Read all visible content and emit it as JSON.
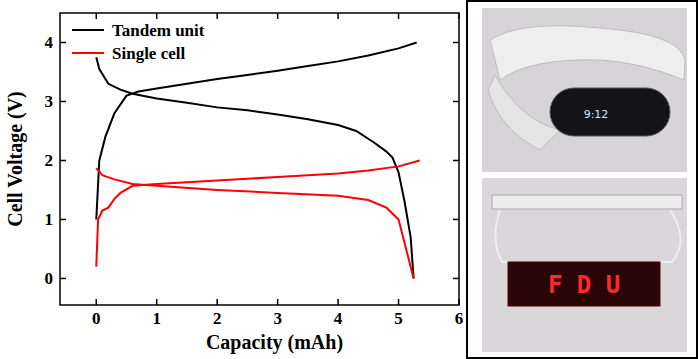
{
  "chart_data": {
    "type": "line",
    "x_label": "Capacity (mAh)",
    "y_label": "Cell Voltage (V)",
    "xlim": [
      -0.6,
      6
    ],
    "xticks": [
      0,
      1,
      2,
      3,
      4,
      5,
      6
    ],
    "ylim": [
      -0.45,
      4.5
    ],
    "yticks": [
      0,
      1,
      2,
      3,
      4
    ],
    "legend": "upper-left",
    "series": [
      {
        "name": "Tandem unit",
        "color": "#000000",
        "x": [
          0,
          0.05,
          0.15,
          0.3,
          0.5,
          0.7,
          1,
          1.5,
          2,
          2.5,
          3,
          3.5,
          4,
          4.5,
          5,
          5.3,
          null,
          0,
          0.05,
          0.2,
          0.4,
          0.6,
          1,
          1.5,
          2,
          2.5,
          3,
          3.5,
          4,
          4.3,
          4.6,
          4.8,
          4.9,
          5.0,
          5.1,
          5.2,
          5.25
        ],
        "values": [
          1.0,
          2.0,
          2.4,
          2.8,
          3.1,
          3.17,
          3.22,
          3.3,
          3.38,
          3.45,
          3.52,
          3.6,
          3.68,
          3.78,
          3.9,
          4.0,
          null,
          3.75,
          3.55,
          3.3,
          3.2,
          3.13,
          3.05,
          2.98,
          2.9,
          2.85,
          2.78,
          2.7,
          2.6,
          2.5,
          2.3,
          2.15,
          2.05,
          1.8,
          1.3,
          0.7,
          0.0
        ]
      },
      {
        "name": "Single cell",
        "color": "#ff0000",
        "x": [
          0,
          0.03,
          0.1,
          0.2,
          0.3,
          0.4,
          0.6,
          1,
          2,
          3,
          4,
          4.5,
          5,
          5.35,
          null,
          0,
          0.1,
          0.3,
          0.6,
          1,
          2,
          3,
          4,
          4.5,
          4.8,
          5.0,
          5.1,
          5.2,
          5.25
        ],
        "values": [
          0.2,
          1.0,
          1.15,
          1.2,
          1.35,
          1.45,
          1.57,
          1.6,
          1.66,
          1.72,
          1.78,
          1.83,
          1.9,
          2.0,
          null,
          1.87,
          1.75,
          1.68,
          1.6,
          1.57,
          1.5,
          1.45,
          1.4,
          1.33,
          1.2,
          1.0,
          0.6,
          0.2,
          0.0
        ]
      }
    ]
  },
  "photos": [
    {
      "display_text": "9:12"
    },
    {
      "display_text": "F D U"
    }
  ]
}
